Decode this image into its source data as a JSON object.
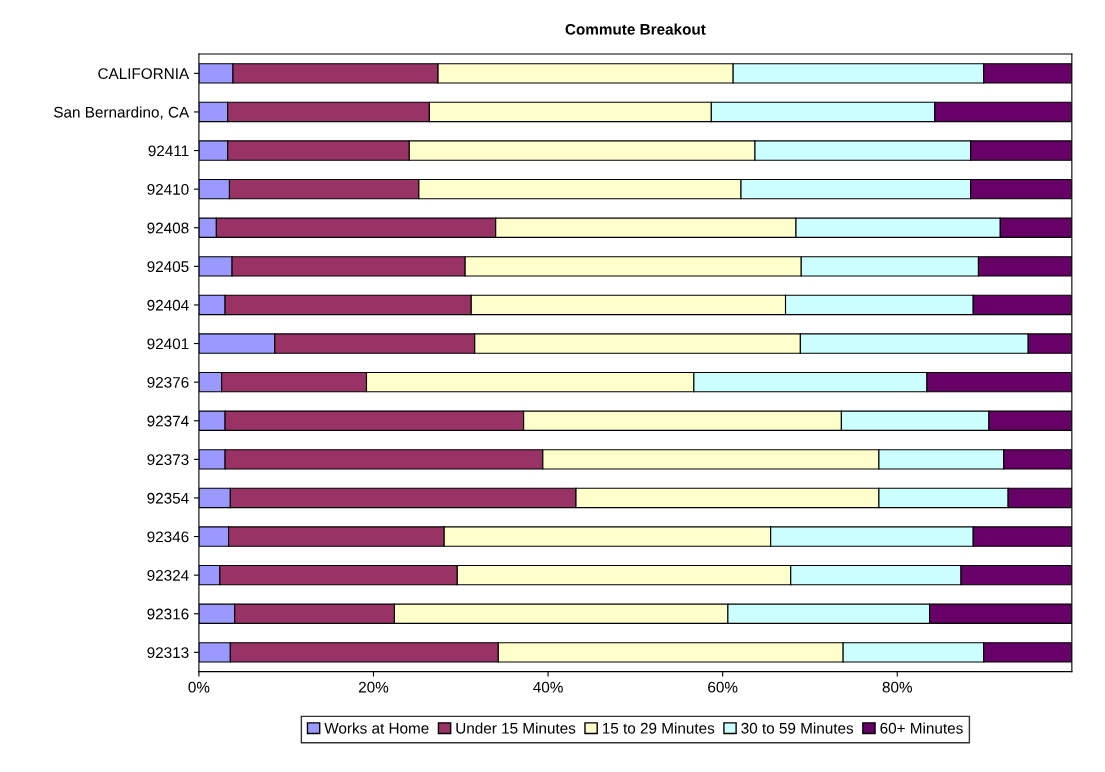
{
  "chart_data": {
    "type": "bar",
    "orientation": "horizontal",
    "stacked": true,
    "title": "Commute Breakout",
    "categories": [
      "CALIFORNIA",
      "San Bernardino, CA",
      "92411",
      "92410",
      "92408",
      "92405",
      "92404",
      "92401",
      "92376",
      "92374",
      "92373",
      "92354",
      "92346",
      "92324",
      "92316",
      "92313"
    ],
    "series": [
      {
        "name": "Works at Home",
        "color": "#9999ff",
        "values": [
          3.9,
          3.3,
          3.3,
          3.5,
          2.0,
          3.8,
          3.0,
          8.7,
          2.6,
          3.0,
          3.0,
          3.6,
          3.4,
          2.4,
          4.1,
          3.6
        ]
      },
      {
        "name": "Under 15 Minutes",
        "color": "#993366",
        "values": [
          23.5,
          23.1,
          20.8,
          21.7,
          32.0,
          26.7,
          28.2,
          22.9,
          16.6,
          34.2,
          36.4,
          39.6,
          24.7,
          27.2,
          18.3,
          30.7
        ]
      },
      {
        "name": "15 to 29 Minutes",
        "color": "#ffffcc",
        "values": [
          33.8,
          32.3,
          39.6,
          36.9,
          34.4,
          38.5,
          36.0,
          37.3,
          37.5,
          36.4,
          38.5,
          34.7,
          37.4,
          38.2,
          38.2,
          39.5
        ]
      },
      {
        "name": "30 to 59 Minutes",
        "color": "#ccffff",
        "values": [
          28.7,
          25.6,
          24.7,
          26.3,
          23.4,
          20.3,
          21.5,
          26.1,
          26.7,
          16.9,
          14.3,
          14.8,
          23.2,
          19.5,
          23.1,
          16.1
        ]
      },
      {
        "name": "60+ Minutes",
        "color": "#660066",
        "values": [
          10.1,
          15.7,
          11.6,
          11.6,
          8.2,
          10.7,
          11.3,
          5.0,
          16.6,
          9.5,
          7.8,
          7.3,
          11.3,
          12.7,
          16.3,
          10.1
        ]
      }
    ],
    "xlim": [
      0,
      100
    ],
    "xticks": [
      {
        "value": 0,
        "label": "0%"
      },
      {
        "value": 20,
        "label": "20%"
      },
      {
        "value": 40,
        "label": "40%"
      },
      {
        "value": 60,
        "label": "60%"
      },
      {
        "value": 80,
        "label": "80%"
      }
    ],
    "grid": false,
    "legend": "bottom"
  }
}
